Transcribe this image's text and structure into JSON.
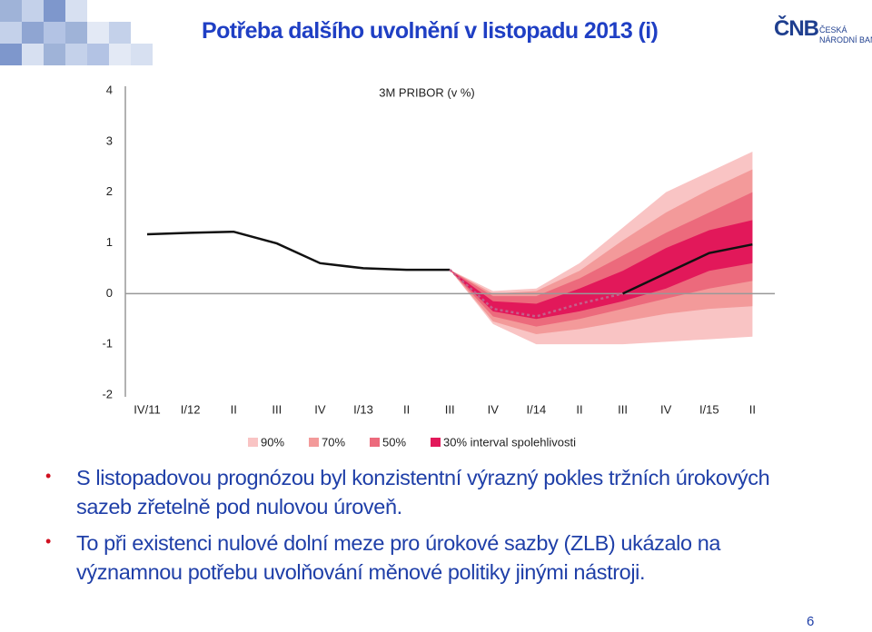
{
  "slide_title": "Potřeba dalšího uvolnění v listopadu 2013 (i)",
  "logo": {
    "mark": "ČNB",
    "line1": "ČESKÁ",
    "line2": "NÁRODNÍ BANKA"
  },
  "bullets": [
    "S listopadovou prognózou byl konzistentní výrazný pokles tržních úrokových sazeb zřetelně pod nulovou úroveň.",
    "To při existenci nulové dolní meze pro úrokové sazby (ZLB) ukázalo na významnou potřebu uvolňování měnové politiky jinými nástroji."
  ],
  "page_number": "6",
  "chart_data": {
    "type": "fan",
    "title": "3M PRIBOR (v %)",
    "categories": [
      "IV/11",
      "I/12",
      "II",
      "III",
      "IV",
      "I/13",
      "II",
      "III",
      "IV",
      "I/14",
      "II",
      "III",
      "IV",
      "I/15",
      "II"
    ],
    "ylim": [
      -2,
      4
    ],
    "yticks": [
      -2,
      -1,
      0,
      1,
      2,
      3,
      4
    ],
    "bands": [
      {
        "name": "90%",
        "color": "#f9c4c4",
        "lower": [
          null,
          null,
          null,
          null,
          null,
          null,
          null,
          0.47,
          -0.6,
          -1.0,
          -1.0,
          -1.0,
          -0.95,
          -0.9,
          -0.85
        ],
        "upper": [
          null,
          null,
          null,
          null,
          null,
          null,
          null,
          0.47,
          0.05,
          0.1,
          0.6,
          1.3,
          2.0,
          2.4,
          2.8
        ]
      },
      {
        "name": "70%",
        "color": "#f39a9a",
        "lower": [
          null,
          null,
          null,
          null,
          null,
          null,
          null,
          0.47,
          -0.55,
          -0.8,
          -0.7,
          -0.55,
          -0.4,
          -0.3,
          -0.25
        ],
        "upper": [
          null,
          null,
          null,
          null,
          null,
          null,
          null,
          0.47,
          0.0,
          0.05,
          0.45,
          1.05,
          1.6,
          2.05,
          2.45
        ]
      },
      {
        "name": "50%",
        "color": "#ec6a7c",
        "lower": [
          null,
          null,
          null,
          null,
          null,
          null,
          null,
          0.47,
          -0.45,
          -0.65,
          -0.5,
          -0.3,
          -0.1,
          0.1,
          0.25
        ],
        "upper": [
          null,
          null,
          null,
          null,
          null,
          null,
          null,
          0.47,
          -0.05,
          -0.05,
          0.3,
          0.75,
          1.2,
          1.6,
          2.0
        ]
      },
      {
        "name": "30% interval spolehlivosti",
        "color": "#e2185a",
        "lower": [
          null,
          null,
          null,
          null,
          null,
          null,
          null,
          0.47,
          -0.35,
          -0.5,
          -0.35,
          -0.15,
          0.1,
          0.45,
          0.6
        ],
        "upper": [
          null,
          null,
          null,
          null,
          null,
          null,
          null,
          0.47,
          -0.15,
          -0.2,
          0.1,
          0.45,
          0.9,
          1.25,
          1.45
        ]
      }
    ],
    "series": [
      {
        "style": "solid",
        "color": "#111111",
        "values": [
          1.17,
          1.2,
          1.22,
          0.99,
          0.6,
          0.5,
          0.47,
          0.47,
          null,
          null,
          null,
          null,
          null,
          null,
          null
        ]
      },
      {
        "style": "dotted",
        "color": "#c4608a",
        "values": [
          null,
          null,
          null,
          null,
          null,
          null,
          null,
          0.47,
          -0.3,
          -0.45,
          -0.2,
          0.0,
          null,
          null,
          null
        ]
      },
      {
        "style": "solid",
        "color": "#111111",
        "values": [
          null,
          null,
          null,
          null,
          null,
          null,
          null,
          null,
          null,
          null,
          null,
          0.0,
          0.4,
          0.8,
          0.97
        ]
      }
    ]
  }
}
